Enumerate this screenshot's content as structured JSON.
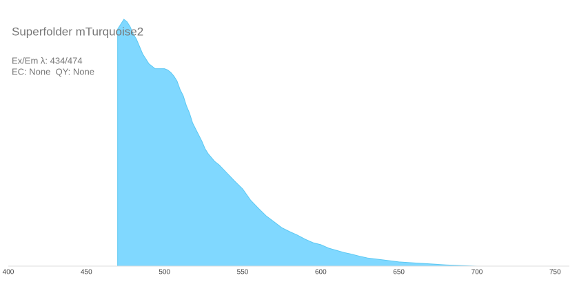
{
  "chart_data": {
    "type": "area",
    "title": "Superfolder mTurquoise2",
    "annotations": [
      "Ex/Em λ: 434/474",
      "EC: None  QY: None"
    ],
    "x": [
      470,
      472,
      474,
      476,
      478,
      480,
      482,
      484,
      486,
      488,
      490,
      492,
      494,
      496,
      498,
      500,
      502,
      504,
      506,
      508,
      510,
      512,
      514,
      516,
      518,
      520,
      522,
      524,
      526,
      528,
      530,
      532,
      535,
      540,
      545,
      550,
      555,
      560,
      565,
      570,
      575,
      580,
      585,
      590,
      595,
      600,
      605,
      610,
      615,
      620,
      625,
      630,
      640,
      650,
      660,
      670,
      680,
      690,
      700
    ],
    "values": [
      0.96,
      0.98,
      1.0,
      0.99,
      0.97,
      0.94,
      0.92,
      0.89,
      0.86,
      0.84,
      0.82,
      0.81,
      0.8,
      0.8,
      0.8,
      0.8,
      0.795,
      0.785,
      0.77,
      0.75,
      0.715,
      0.69,
      0.65,
      0.62,
      0.58,
      0.555,
      0.53,
      0.505,
      0.475,
      0.455,
      0.44,
      0.425,
      0.41,
      0.377,
      0.344,
      0.313,
      0.268,
      0.235,
      0.204,
      0.18,
      0.156,
      0.14,
      0.126,
      0.109,
      0.095,
      0.087,
      0.073,
      0.064,
      0.055,
      0.048,
      0.04,
      0.033,
      0.025,
      0.017,
      0.013,
      0.009,
      0.005,
      0.002,
      0
    ],
    "color": "#80d8ff",
    "xlim": [
      400,
      760
    ],
    "ylim": [
      0,
      1
    ],
    "xticks": [
      400,
      450,
      500,
      550,
      600,
      650,
      700,
      750
    ],
    "grid": false
  }
}
